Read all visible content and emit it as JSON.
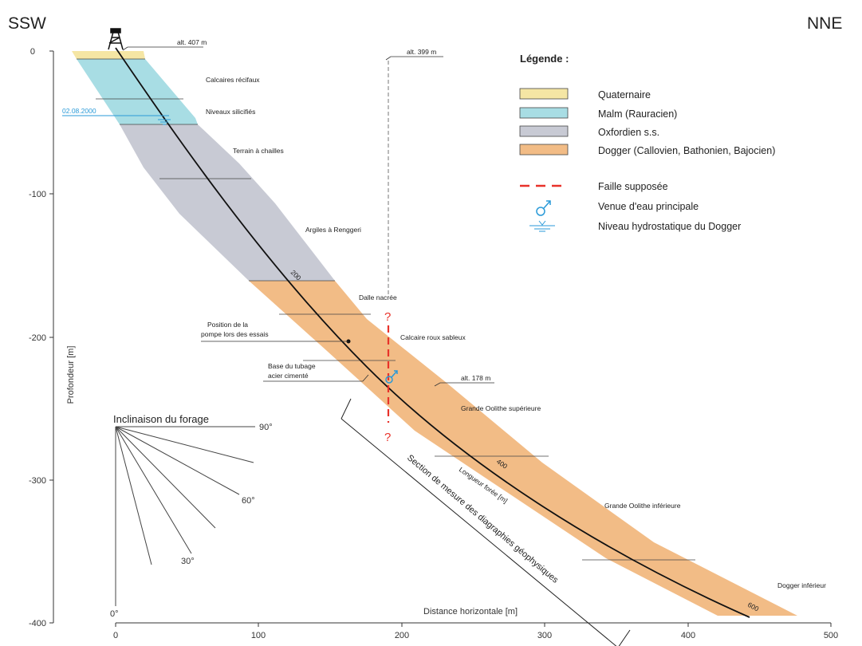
{
  "directions": {
    "left": "SSW",
    "right": "NNE"
  },
  "axes": {
    "y_label": "Profondeur [m]",
    "x_label": "Distance horizontale [m]",
    "y_ticks": [
      "0",
      "-100",
      "-200",
      "-300",
      "-400"
    ],
    "x_ticks": [
      "0",
      "100",
      "200",
      "300",
      "400",
      "500"
    ]
  },
  "altitudes": {
    "rig": "alt. 407 m",
    "fault_top": "alt. 399 m",
    "lower": "alt. 178 m"
  },
  "water_level_date": "02.08.2000",
  "formation_labels": {
    "calcaires_recifaux": "Calcaires récifaux",
    "niveaux_silicifies": "Niveaux silicifiés",
    "terrain_a_chailles": "Terrain à chailles",
    "argiles_renggeri": "Argiles à Renggeri",
    "dalle_nacree": "Dalle nacrée",
    "calcaire_roux": "Calcaire roux sableux",
    "grande_oolithe_sup": "Grande Oolithe supérieure",
    "grande_oolithe_inf": "Grande Oolithe inférieure",
    "dogger_inferieur": "Dogger inférieur"
  },
  "annotations": {
    "pump_line1": "Position de la",
    "pump_line2": "pompe lors des essais",
    "casing_line1": "Base du tubage",
    "casing_line2": "acier cimenté",
    "section": "Section de mesure des diagraphies géophysiques",
    "length_label": "Longueur forée [m]",
    "length_200": "200",
    "length_400": "400",
    "length_600": "600",
    "fault_q": "?"
  },
  "inclination": {
    "title": "Inclinaison du forage",
    "deg_90": "90°",
    "deg_60": "60°",
    "deg_30": "30°",
    "deg_0": "0°"
  },
  "legend": {
    "title": "Légende :",
    "items": [
      {
        "label": "Quaternaire",
        "color": "#f5e6a4"
      },
      {
        "label": "Malm (Rauracien)",
        "color": "#a8dde4"
      },
      {
        "label": "Oxfordien s.s.",
        "color": "#c8cad4"
      },
      {
        "label": "Dogger (Callovien, Bathonien, Bajocien)",
        "color": "#f2bc86"
      }
    ],
    "fault": "Faille supposée",
    "water_inflow": "Venue d'eau principale",
    "hydro_level": "Niveau hydrostatique du Dogger"
  },
  "colors": {
    "quaternaire": "#f5e6a4",
    "malm": "#a8dde4",
    "oxfordien": "#c8cad4",
    "dogger": "#f2bc86",
    "fault": "#e8322a",
    "water": "#2a9ad8"
  }
}
